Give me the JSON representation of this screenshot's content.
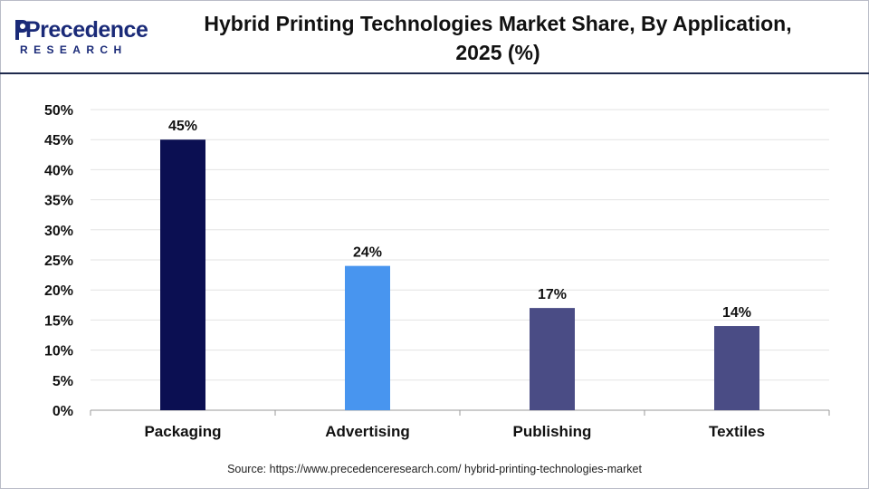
{
  "brand": {
    "name": "Precedence",
    "sub": "RESEARCH",
    "color": "#1a2a78"
  },
  "title_line1": "Hybrid Printing Technologies Market Share, By Application,",
  "title_line2": "2025 (%)",
  "source": "Source: https://www.precedenceresearch.com/ hybrid-printing-technologies-market",
  "chart_data": {
    "type": "bar",
    "title": "Hybrid Printing Technologies Market Share, By Application, 2025 (%)",
    "categories": [
      "Packaging",
      "Advertising",
      "Publishing",
      "Textiles"
    ],
    "values": [
      45,
      24,
      17,
      14
    ],
    "data_labels": [
      "45%",
      "24%",
      "17%",
      "14%"
    ],
    "colors": [
      "#0b0f52",
      "#4895ef",
      "#4a4c85",
      "#4a4c85"
    ],
    "ylim": [
      0,
      50
    ],
    "yticks": [
      0,
      5,
      10,
      15,
      20,
      25,
      30,
      35,
      40,
      45,
      50
    ],
    "ytick_labels": [
      "0%",
      "5%",
      "10%",
      "15%",
      "20%",
      "25%",
      "30%",
      "35%",
      "40%",
      "45%",
      "50%"
    ],
    "xlabel": "",
    "ylabel": "",
    "grid": true,
    "legend": "none"
  }
}
